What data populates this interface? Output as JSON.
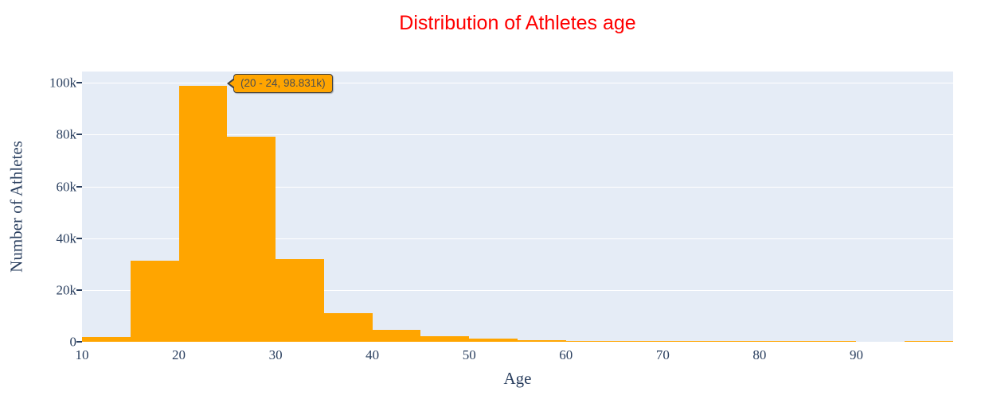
{
  "figure": {
    "title": "Distribution of Athletes age"
  },
  "tooltip": {
    "text": "(20 - 24, 98.831k)"
  },
  "chart_data": {
    "type": "bar",
    "subtype": "histogram",
    "title": "Distribution of Athletes age",
    "xlabel": "Age",
    "ylabel": "Number of Athletes",
    "xlim": [
      10,
      100
    ],
    "ylim": [
      0,
      104360
    ],
    "bin_width": 5,
    "categories": [
      "10 - 14",
      "15 - 19",
      "20 - 24",
      "25 - 29",
      "30 - 34",
      "35 - 39",
      "40 - 44",
      "45 - 49",
      "50 - 54",
      "55 - 59",
      "60 - 64",
      "65 - 69",
      "70 - 74",
      "75 - 79",
      "80 - 84",
      "85 - 89",
      "90 - 94",
      "95 - 99"
    ],
    "values": [
      1800,
      31200,
      98831,
      79300,
      31900,
      11000,
      4600,
      2200,
      1200,
      700,
      350,
      250,
      200,
      150,
      120,
      100,
      0,
      100
    ],
    "peak_annotation": "(20 - 24, 98.831k)",
    "xticks": {
      "values": [
        10,
        20,
        30,
        40,
        50,
        60,
        70,
        80,
        90
      ]
    },
    "yticks": {
      "values": [
        0,
        20000,
        40000,
        60000,
        80000,
        100000
      ],
      "labels": [
        "0",
        "20k",
        "40k",
        "60k",
        "80k",
        "100k"
      ]
    },
    "legend": "none",
    "grid": "horizontal-only",
    "colors": {
      "bar": "#ffa500",
      "plot_background": "#e5ecf6",
      "gridline": "#ffffff",
      "axis_text": "#2a3f5f",
      "title": "#ff0000",
      "tooltip_background": "#ffa500",
      "tooltip_border": "#404040",
      "tooltip_text": "#4f4f4f"
    }
  }
}
